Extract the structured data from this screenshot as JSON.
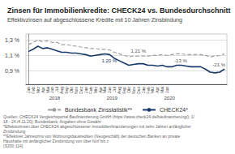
{
  "chart_data": {
    "type": "line",
    "title": "Zinsen für Immobilienkredite: CHECK24 vs. Bundesdurchschnitt",
    "subtitle": "Effektivzinsen auf abgeschlossene Kredite mit 10 Jahren Zinsbindung",
    "footnote": "Quellen: CHECK24 Vergleichsportal Baufinanzierung GmbH (https://www.check24.de/baufinanzierung/); 1/18 - 24./4.11.20); Bundesbank; Angaben ohne Gewähr\n*Effektivzinsen über CHECK24 abgeschlossener Immobilienfinanzierungen mit zehn Jahren anfänglicher Zinsbindung\n**Effektiver Jahreszins von Wohnungsbaukrediten (Neugeschäft) der deutschen Banken an private Haushalte mit anfänglicher Zinsbindung von über fünf bis z\n(S330 114)",
    "categories": [
      "Jan",
      "Feb",
      "Mrz",
      "Apr",
      "Mai",
      "Jun",
      "Jul",
      "Aug",
      "Sep",
      "Okt",
      "Nov",
      "Dez",
      "Jan",
      "Feb",
      "Mrz",
      "Apr",
      "Mai",
      "Jun",
      "Jul",
      "Aug",
      "Sep",
      "Okt",
      "Nov",
      "Dez",
      "Jan",
      "Feb",
      "Mrz",
      "Apr",
      "Mai",
      "Jun",
      null,
      null,
      null,
      null,
      null,
      null,
      null,
      null,
      null,
      null,
      null,
      null
    ],
    "year_labels": [
      {
        "value": 5.5,
        "label": "2018"
      },
      {
        "value": 17.5,
        "label": "2019"
      },
      {
        "value": 29.5,
        "label": "2020"
      }
    ],
    "series": [
      {
        "name": "Bundesbank Zinsstatistik**",
        "color": "#a0a0a0",
        "line_style": "dashed",
        "values": [
          1.24,
          1.27,
          1.3,
          1.28,
          1.29,
          1.27,
          1.27,
          1.24,
          1.24,
          1.23,
          1.22,
          1.21,
          1.2,
          1.19,
          1.19,
          1.18,
          1.18,
          1.17,
          1.14,
          1.12,
          1.1,
          1.08,
          1.09,
          1.09,
          1.09,
          1.09,
          1.1,
          1.1,
          1.11,
          1.1,
          1.11,
          1.12,
          1.12,
          1.11,
          1.11,
          1.11,
          1.11,
          1.1,
          1.08,
          1.09,
          1.1,
          1.12
        ]
      },
      {
        "name": "CHECK24*",
        "color": "#1a3a6b",
        "line_style": "solid",
        "values": [
          1.15,
          1.18,
          1.22,
          1.19,
          1.2,
          1.18,
          1.16,
          1.14,
          1.14,
          1.13,
          1.13,
          1.12,
          1.11,
          1.09,
          1.1,
          1.11,
          1.12,
          1.11,
          1.06,
          1.03,
          1.0,
          0.97,
          0.98,
          0.99,
          0.99,
          0.97,
          0.97,
          0.96,
          0.97,
          0.95,
          0.95,
          0.97,
          0.97,
          0.96,
          0.95,
          0.95,
          0.95,
          0.92,
          0.88,
          0.87,
          0.88,
          0.92
        ]
      }
    ],
    "annotations": [
      {
        "text": "1,21 %",
        "x": 23,
        "y": 1.09
      },
      {
        "text": "1,20 %",
        "x": 19,
        "y": 1.03,
        "color": "#1a3a6b"
      },
      {
        "text": "-13 %",
        "x": 30,
        "y": 1.03
      },
      {
        "text": "-21 %",
        "x": 38,
        "y": 0.98
      }
    ],
    "ylim": [
      0.72,
      1.38
    ],
    "yticks": [
      {
        "value": 0.9,
        "label": "0,9 %"
      },
      {
        "value": 1.1,
        "label": "1,1 %"
      },
      {
        "value": 1.3,
        "label": "1,3 %"
      }
    ],
    "grid": true,
    "legend": "bottom"
  }
}
